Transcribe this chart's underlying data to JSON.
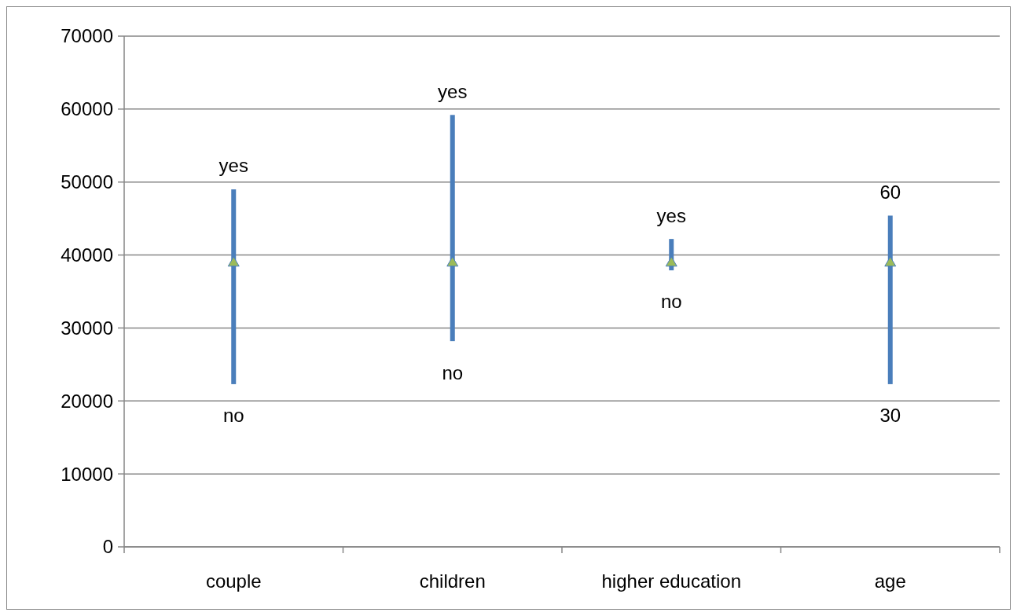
{
  "chart_data": {
    "type": "bar",
    "categories": [
      "couple",
      "children",
      "higher education",
      "age"
    ],
    "series": [
      {
        "color": "#4a7ebb",
        "base": [
          22300,
          28200,
          37900,
          22300
        ],
        "values": [
          26700,
          31000,
          4300,
          23100
        ]
      },
      {
        "type": "scatter",
        "color": "#9bbb59",
        "x": [
          "couple",
          "children",
          "higher education",
          "age"
        ],
        "values": [
          39000,
          39000,
          39000,
          39000
        ]
      }
    ],
    "marker": "triangle",
    "ylim": [
      0,
      70000
    ],
    "yticks": [
      0,
      10000,
      20000,
      30000,
      40000,
      50000,
      60000,
      70000
    ],
    "grid": "y",
    "annotations": [
      {
        "text": "yes",
        "x": "couple",
        "y": 49000
      },
      {
        "text": "no",
        "x": "couple",
        "y": 22300
      },
      {
        "text": "yes",
        "x": "children",
        "y": 59200
      },
      {
        "text": "no",
        "x": "children",
        "y": 28200
      },
      {
        "text": "yes",
        "x": "higher education",
        "y": 42200
      },
      {
        "text": "no",
        "x": "higher education",
        "y": 37900
      },
      {
        "text": "60",
        "x": "age",
        "y": 45400
      },
      {
        "text": "30",
        "x": "age",
        "y": 22300
      }
    ]
  }
}
